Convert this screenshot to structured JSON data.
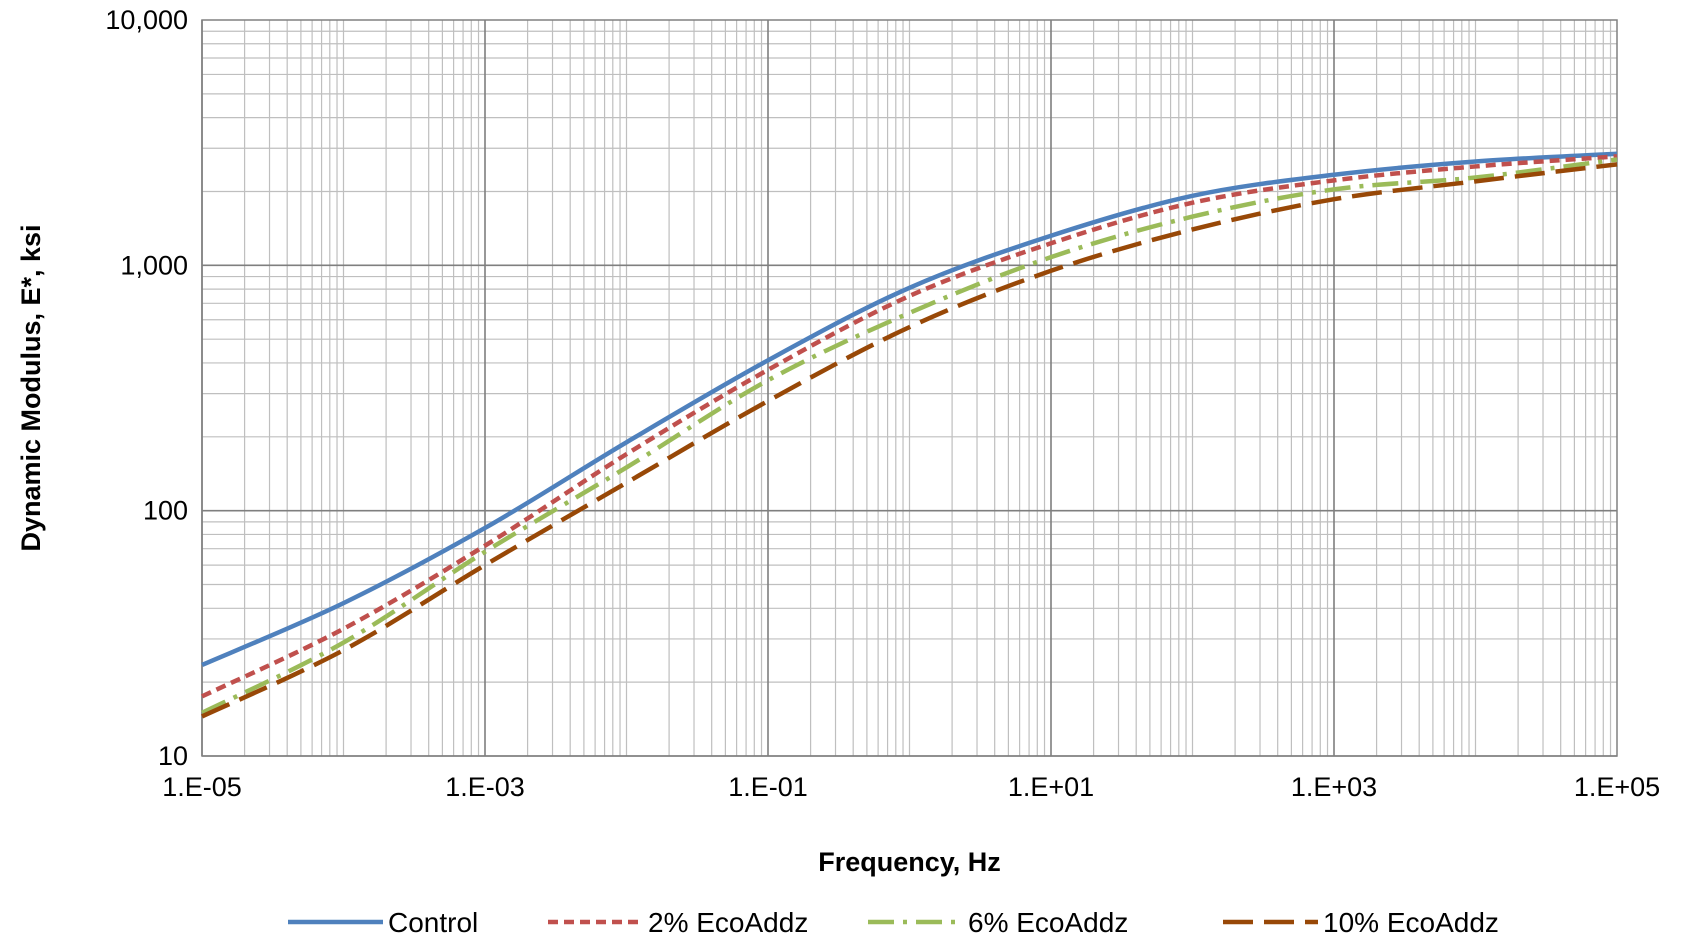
{
  "chart_data": {
    "type": "line",
    "title": "",
    "xlabel": "Frequency, Hz",
    "ylabel": "Dynamic Modulus, E*, ksi",
    "x_scale": "log",
    "y_scale": "log",
    "xlim": [
      1e-05,
      100000
    ],
    "ylim": [
      10,
      10000
    ],
    "grid": true,
    "legend_position": "bottom",
    "x_tick_labels": [
      {
        "value": 1e-05,
        "label": "1.E-05"
      },
      {
        "value": 0.001,
        "label": "1.E-03"
      },
      {
        "value": 0.1,
        "label": "1.E-01"
      },
      {
        "value": 10,
        "label": "1.E+01"
      },
      {
        "value": 1000,
        "label": "1.E+03"
      },
      {
        "value": 100000,
        "label": "1.E+05"
      }
    ],
    "y_tick_labels": [
      {
        "value": 10,
        "label": "10"
      },
      {
        "value": 100,
        "label": "100"
      },
      {
        "value": 1000,
        "label": "1,000"
      },
      {
        "value": 10000,
        "label": "10,000"
      }
    ],
    "x": [
      1e-05,
      0.0001,
      0.001,
      0.01,
      0.1,
      1,
      10,
      100,
      1000,
      10000,
      100000
    ],
    "series": [
      {
        "name": "Control",
        "color": "#4F81BD",
        "dash": "solid",
        "values": [
          23.5,
          42,
          85,
          190,
          410,
          810,
          1320,
          1920,
          2340,
          2650,
          2850
        ]
      },
      {
        "name": "2% EcoAddz",
        "color": "#C0504D",
        "dash": "dash",
        "values": [
          17.5,
          33,
          72,
          170,
          375,
          750,
          1230,
          1800,
          2220,
          2530,
          2780
        ]
      },
      {
        "name": "6% EcoAddz",
        "color": "#9BBB59",
        "dash": "dashdot",
        "values": [
          15,
          29,
          68,
          150,
          340,
          640,
          1080,
          1580,
          2040,
          2280,
          2700
        ]
      },
      {
        "name": "10% EcoAddz",
        "color": "#984807",
        "dash": "longdash",
        "values": [
          14.5,
          27,
          60,
          130,
          280,
          560,
          950,
          1400,
          1860,
          2200,
          2580
        ]
      }
    ]
  }
}
